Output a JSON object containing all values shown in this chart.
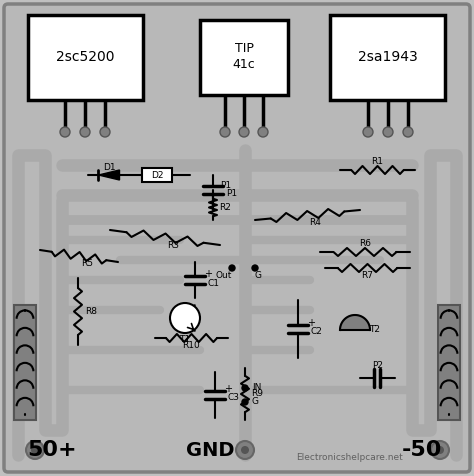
{
  "bg_color": "#c0c0c0",
  "pcb_fill": "#b8b8b8",
  "pcb_edge": "#888888",
  "trace_color": "#a0a0a0",
  "black": "#000000",
  "white": "#ffffff",
  "dark_gray": "#808080",
  "labels": {
    "Q1": "2sc5200",
    "Q2": "2sa1943",
    "Q3_line1": "TIP",
    "Q3_line2": "41c",
    "50p": "50+",
    "50n": "-50",
    "gnd": "GND",
    "out": "Out",
    "G1": "G",
    "IN": "IN",
    "G2": "G",
    "watermark": "Electronicshelpcare.net"
  },
  "figsize": [
    4.74,
    4.76
  ],
  "dpi": 100
}
